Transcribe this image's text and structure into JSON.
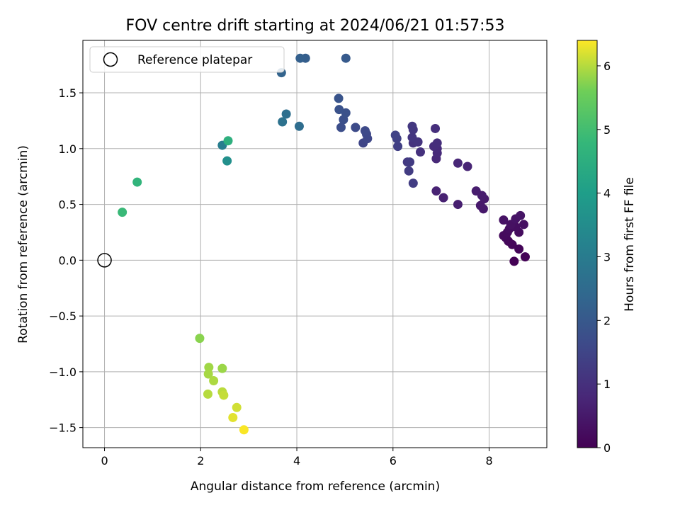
{
  "chart_data": {
    "type": "scatter",
    "title": "FOV centre drift starting at 2024/06/21 01:57:53",
    "xlabel": "Angular distance from reference (arcmin)",
    "ylabel": "Rotation from reference (arcmin)",
    "colorbar_label": "Hours from first FF file",
    "colormap": "viridis",
    "xlim": [
      -0.45,
      9.2
    ],
    "ylim": [
      -1.68,
      1.97
    ],
    "clim": [
      0,
      6.4
    ],
    "xticks": [
      0,
      2,
      4,
      6,
      8
    ],
    "xtick_labels": [
      "0",
      "2",
      "4",
      "6",
      "8"
    ],
    "yticks": [
      -1.5,
      -1.0,
      -0.5,
      0.0,
      0.5,
      1.0,
      1.5
    ],
    "ytick_labels": [
      "−1.5",
      "−1.0",
      "−0.5",
      "0.0",
      "0.5",
      "1.0",
      "1.5"
    ],
    "cticks": [
      0,
      1,
      2,
      3,
      4,
      5,
      6
    ],
    "ctick_labels": [
      "0",
      "1",
      "2",
      "3",
      "4",
      "5",
      "6"
    ],
    "grid": true,
    "legend": {
      "placement": "top-left",
      "entries": [
        "Reference platepar"
      ]
    },
    "reference_point": {
      "x": 0,
      "y": 0
    },
    "points": [
      {
        "x": 8.52,
        "y": -0.01,
        "c": 0.02
      },
      {
        "x": 8.75,
        "y": 0.03,
        "c": 0.05
      },
      {
        "x": 8.62,
        "y": 0.1,
        "c": 0.08
      },
      {
        "x": 8.48,
        "y": 0.14,
        "c": 0.1
      },
      {
        "x": 8.4,
        "y": 0.17,
        "c": 0.13
      },
      {
        "x": 8.35,
        "y": 0.2,
        "c": 0.15
      },
      {
        "x": 8.3,
        "y": 0.22,
        "c": 0.18
      },
      {
        "x": 8.38,
        "y": 0.25,
        "c": 0.2
      },
      {
        "x": 8.62,
        "y": 0.25,
        "c": 0.22
      },
      {
        "x": 8.42,
        "y": 0.28,
        "c": 0.25
      },
      {
        "x": 8.55,
        "y": 0.3,
        "c": 0.27
      },
      {
        "x": 8.72,
        "y": 0.32,
        "c": 0.3
      },
      {
        "x": 8.45,
        "y": 0.32,
        "c": 0.32
      },
      {
        "x": 8.3,
        "y": 0.36,
        "c": 0.35
      },
      {
        "x": 8.55,
        "y": 0.37,
        "c": 0.37
      },
      {
        "x": 8.65,
        "y": 0.4,
        "c": 0.4
      },
      {
        "x": 7.88,
        "y": 0.46,
        "c": 0.48
      },
      {
        "x": 7.82,
        "y": 0.49,
        "c": 0.5
      },
      {
        "x": 7.9,
        "y": 0.55,
        "c": 0.52
      },
      {
        "x": 7.85,
        "y": 0.58,
        "c": 0.55
      },
      {
        "x": 7.73,
        "y": 0.62,
        "c": 0.58
      },
      {
        "x": 7.35,
        "y": 0.5,
        "c": 0.62
      },
      {
        "x": 7.05,
        "y": 0.56,
        "c": 0.66
      },
      {
        "x": 6.9,
        "y": 0.62,
        "c": 0.7
      },
      {
        "x": 7.55,
        "y": 0.84,
        "c": 0.74
      },
      {
        "x": 7.35,
        "y": 0.87,
        "c": 0.78
      },
      {
        "x": 6.9,
        "y": 0.91,
        "c": 0.82
      },
      {
        "x": 6.92,
        "y": 0.96,
        "c": 0.85
      },
      {
        "x": 6.92,
        "y": 1.0,
        "c": 0.88
      },
      {
        "x": 6.85,
        "y": 1.02,
        "c": 0.92
      },
      {
        "x": 6.92,
        "y": 1.05,
        "c": 0.95
      },
      {
        "x": 6.88,
        "y": 1.18,
        "c": 0.98
      },
      {
        "x": 6.57,
        "y": 0.97,
        "c": 1.02
      },
      {
        "x": 6.42,
        "y": 1.05,
        "c": 1.05
      },
      {
        "x": 6.52,
        "y": 1.06,
        "c": 1.08
      },
      {
        "x": 6.4,
        "y": 1.1,
        "c": 1.12
      },
      {
        "x": 6.42,
        "y": 1.17,
        "c": 1.15
      },
      {
        "x": 6.4,
        "y": 1.2,
        "c": 1.18
      },
      {
        "x": 6.3,
        "y": 0.88,
        "c": 1.22
      },
      {
        "x": 6.35,
        "y": 0.88,
        "c": 1.25
      },
      {
        "x": 6.33,
        "y": 0.8,
        "c": 1.28
      },
      {
        "x": 6.42,
        "y": 0.69,
        "c": 1.32
      },
      {
        "x": 6.1,
        "y": 1.02,
        "c": 1.36
      },
      {
        "x": 6.08,
        "y": 1.09,
        "c": 1.4
      },
      {
        "x": 6.05,
        "y": 1.12,
        "c": 1.44
      },
      {
        "x": 5.38,
        "y": 1.05,
        "c": 1.5
      },
      {
        "x": 5.47,
        "y": 1.09,
        "c": 1.54
      },
      {
        "x": 5.45,
        "y": 1.13,
        "c": 1.58
      },
      {
        "x": 5.42,
        "y": 1.16,
        "c": 1.62
      },
      {
        "x": 5.22,
        "y": 1.19,
        "c": 1.66
      },
      {
        "x": 4.92,
        "y": 1.19,
        "c": 1.72
      },
      {
        "x": 4.97,
        "y": 1.26,
        "c": 1.76
      },
      {
        "x": 5.02,
        "y": 1.32,
        "c": 1.8
      },
      {
        "x": 4.88,
        "y": 1.35,
        "c": 1.84
      },
      {
        "x": 4.87,
        "y": 1.45,
        "c": 1.88
      },
      {
        "x": 5.02,
        "y": 1.81,
        "c": 2.05
      },
      {
        "x": 4.18,
        "y": 1.81,
        "c": 2.15
      },
      {
        "x": 4.07,
        "y": 1.81,
        "c": 2.2
      },
      {
        "x": 3.68,
        "y": 1.68,
        "c": 2.3
      },
      {
        "x": 4.05,
        "y": 1.2,
        "c": 2.55
      },
      {
        "x": 3.78,
        "y": 1.31,
        "c": 2.62
      },
      {
        "x": 3.7,
        "y": 1.24,
        "c": 2.7
      },
      {
        "x": 2.45,
        "y": 1.03,
        "c": 3.05
      },
      {
        "x": 2.55,
        "y": 0.89,
        "c": 3.6
      },
      {
        "x": 2.57,
        "y": 1.07,
        "c": 4.55
      },
      {
        "x": 0.68,
        "y": 0.7,
        "c": 4.7
      },
      {
        "x": 0.37,
        "y": 0.43,
        "c": 4.85
      },
      {
        "x": 1.98,
        "y": -0.7,
        "c": 5.75
      },
      {
        "x": 2.45,
        "y": -0.97,
        "c": 5.85
      },
      {
        "x": 2.17,
        "y": -0.96,
        "c": 5.88
      },
      {
        "x": 2.16,
        "y": -1.02,
        "c": 5.92
      },
      {
        "x": 2.27,
        "y": -1.08,
        "c": 5.95
      },
      {
        "x": 2.15,
        "y": -1.2,
        "c": 6.0
      },
      {
        "x": 2.45,
        "y": -1.18,
        "c": 6.03
      },
      {
        "x": 2.48,
        "y": -1.21,
        "c": 6.08
      },
      {
        "x": 2.75,
        "y": -1.32,
        "c": 6.15
      },
      {
        "x": 2.67,
        "y": -1.41,
        "c": 6.25
      },
      {
        "x": 2.9,
        "y": -1.52,
        "c": 6.38
      }
    ]
  }
}
